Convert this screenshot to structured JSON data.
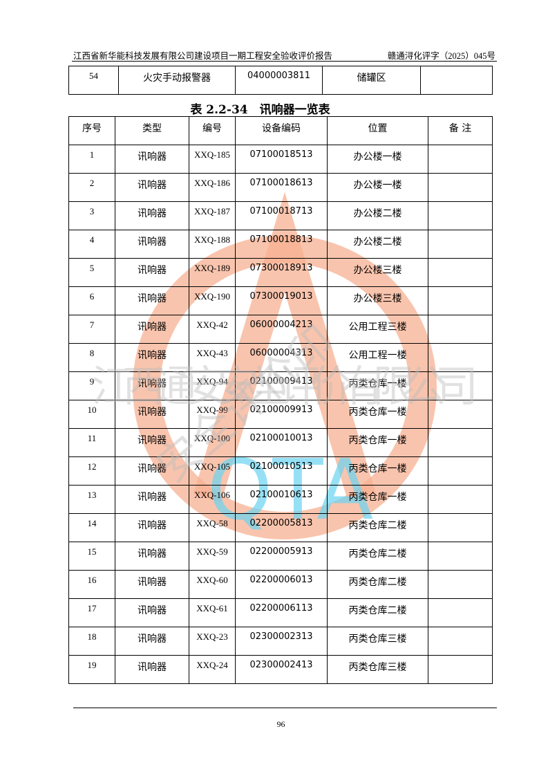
{
  "header": {
    "left": "江西省新华能科技发展有限公司建设项目一期工程安全验收评价报告",
    "right": "赣通浔化评字（2025）045号"
  },
  "prev_table": {
    "rows": [
      [
        "54",
        "火灾手动报警器",
        "04000003811",
        "储罐区",
        ""
      ]
    ]
  },
  "caption": "表 2.2-34　讯响器一览表",
  "table": {
    "headers": [
      "序号",
      "类型",
      "编号",
      "设备编码",
      "位置",
      "备 注"
    ],
    "rows": [
      [
        "1",
        "讯响器",
        "XXQ-185",
        "07100018513",
        "办公楼一楼",
        ""
      ],
      [
        "2",
        "讯响器",
        "XXQ-186",
        "07100018613",
        "办公楼一楼",
        ""
      ],
      [
        "3",
        "讯响器",
        "XXQ-187",
        "07100018713",
        "办公楼二楼",
        ""
      ],
      [
        "4",
        "讯响器",
        "XXQ-188",
        "07100018813",
        "办公楼二楼",
        ""
      ],
      [
        "5",
        "讯响器",
        "XXQ-189",
        "07300018913",
        "办公楼三楼",
        ""
      ],
      [
        "6",
        "讯响器",
        "XXQ-190",
        "07300019013",
        "办公楼三楼",
        ""
      ],
      [
        "7",
        "讯响器",
        "XXQ-42",
        "06000004213",
        "公用工程三楼",
        ""
      ],
      [
        "8",
        "讯响器",
        "XXQ-43",
        "06000004313",
        "公用工程一楼",
        ""
      ],
      [
        "9",
        "讯响器",
        "XXQ-94",
        "02100009413",
        "丙类仓库一楼",
        ""
      ],
      [
        "10",
        "讯响器",
        "XXQ-99",
        "02100009913",
        "丙类仓库一楼",
        ""
      ],
      [
        "11",
        "讯响器",
        "XXQ-100",
        "02100010013",
        "丙类仓库一楼",
        ""
      ],
      [
        "12",
        "讯响器",
        "XXQ-105",
        "02100010513",
        "丙类仓库一楼",
        ""
      ],
      [
        "13",
        "讯响器",
        "XXQ-106",
        "02100010613",
        "丙类仓库一楼",
        ""
      ],
      [
        "14",
        "讯响器",
        "XXQ-58",
        "02200005813",
        "丙类仓库二楼",
        ""
      ],
      [
        "15",
        "讯响器",
        "XXQ-59",
        "02200005913",
        "丙类仓库二楼",
        ""
      ],
      [
        "16",
        "讯响器",
        "XXQ-60",
        "02200006013",
        "丙类仓库二楼",
        ""
      ],
      [
        "17",
        "讯响器",
        "XXQ-61",
        "02200006113",
        "丙类仓库二楼",
        ""
      ],
      [
        "18",
        "讯响器",
        "XXQ-23",
        "02300002313",
        "丙类仓库三楼",
        ""
      ],
      [
        "19",
        "讯响器",
        "XXQ-24",
        "02300002413",
        "丙类仓库三楼",
        ""
      ]
    ]
  },
  "footer": {
    "page_number": "96"
  },
  "watermark": {
    "company": "江西通安安全评价有限公司",
    "stamp": "安全评价印",
    "logo": "QTA",
    "colors": {
      "ring": "#f4a080",
      "logo": "#5fd0f0",
      "text": "#c8c8c8"
    }
  }
}
